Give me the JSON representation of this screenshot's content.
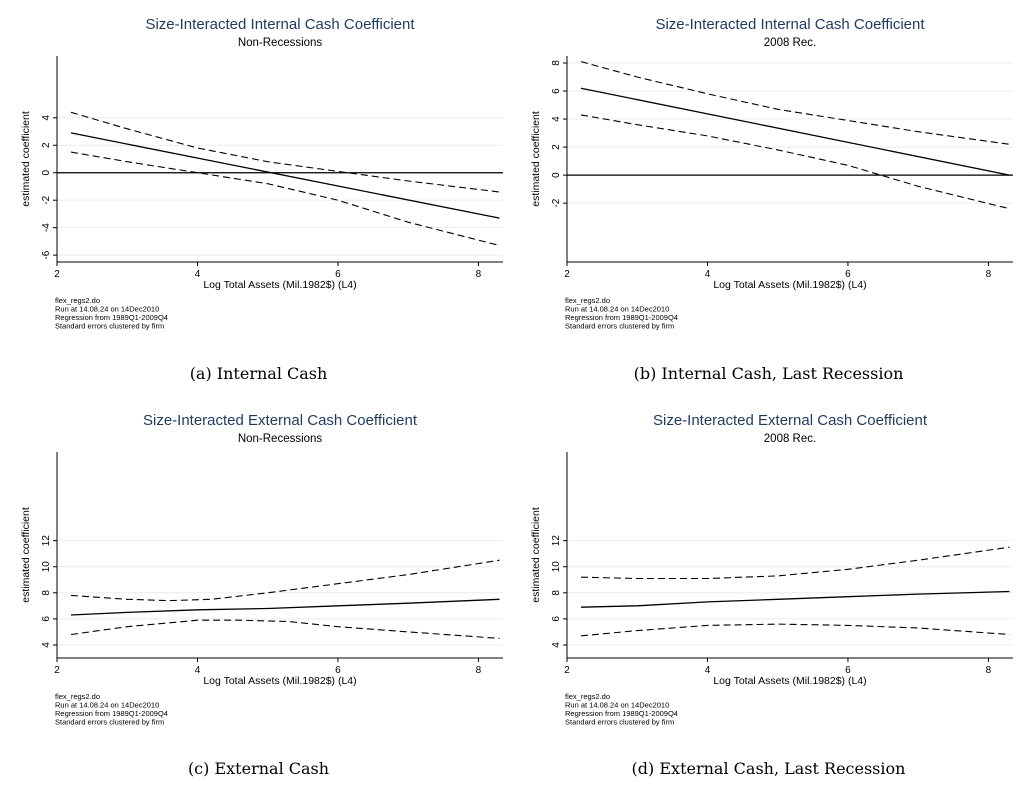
{
  "captions": [
    "(a) Internal Cash",
    "(b) Internal Cash, Last Recession",
    "(c) External Cash",
    "(d) External Cash, Last Recession"
  ],
  "chart_data": [
    {
      "type": "line",
      "title": "Size-Interacted Internal Cash Coefficient",
      "subtitle": "Non-Recessions",
      "xlabel": "Log Total Assets (Mil.1982$) (L4)",
      "ylabel": "estimated coefficient",
      "xlim": [
        2,
        8.35
      ],
      "ylim": [
        -6.5,
        8.5
      ],
      "xticks": [
        2,
        4,
        6,
        8
      ],
      "yticks": [
        -6,
        -4,
        -2,
        0,
        2,
        4
      ],
      "zero_line": true,
      "notes": [
        "flex_regs2.do",
        "Run at 14.08.24 on 14Dec2010",
        "Regression from 1989Q1-2009Q4",
        "Standard errors clustered by firm"
      ],
      "series": [
        {
          "style": "solid",
          "x": [
            2.2,
            8.3
          ],
          "y": [
            2.9,
            -3.3
          ]
        },
        {
          "style": "dashed",
          "x": [
            2.2,
            3.0,
            4.0,
            5.0,
            6.0,
            7.0,
            8.3
          ],
          "y": [
            4.4,
            3.2,
            1.8,
            0.8,
            0.1,
            -0.6,
            -1.4
          ]
        },
        {
          "style": "dashed",
          "x": [
            2.2,
            3.0,
            4.0,
            5.0,
            6.0,
            7.0,
            8.3
          ],
          "y": [
            1.5,
            0.8,
            0.0,
            -0.8,
            -2.0,
            -3.6,
            -5.3
          ]
        }
      ]
    },
    {
      "type": "line",
      "title": "Size-Interacted Internal Cash Coefficient",
      "subtitle": "2008 Rec.",
      "xlabel": "Log Total Assets (Mil.1982$) (L4)",
      "ylabel": "estimated coefficient",
      "xlim": [
        2,
        8.35
      ],
      "ylim": [
        -6.2,
        8.5
      ],
      "xticks": [
        2,
        4,
        6,
        8
      ],
      "yticks": [
        -2,
        0,
        2,
        4,
        6,
        8
      ],
      "zero_line": true,
      "notes": [
        "flex_regs2.do",
        "Run at 14.08.24 on 14Dec2010",
        "Regression from 1989Q1-2009Q4",
        "Standard errors clustered by firm"
      ],
      "series": [
        {
          "style": "solid",
          "x": [
            2.2,
            8.3
          ],
          "y": [
            6.2,
            0.0
          ]
        },
        {
          "style": "dashed",
          "x": [
            2.2,
            3.0,
            4.0,
            5.0,
            6.0,
            7.0,
            8.3
          ],
          "y": [
            8.1,
            7.0,
            5.8,
            4.7,
            3.9,
            3.1,
            2.2
          ]
        },
        {
          "style": "dashed",
          "x": [
            2.2,
            3.0,
            4.0,
            5.0,
            6.0,
            7.0,
            8.3
          ],
          "y": [
            4.3,
            3.6,
            2.8,
            1.8,
            0.7,
            -0.8,
            -2.4
          ]
        }
      ]
    },
    {
      "type": "line",
      "title": "Size-Interacted External Cash Coefficient",
      "subtitle": "Non-Recessions",
      "xlabel": "Log Total Assets (Mil.1982$) (L4)",
      "ylabel": "estimated coefficient",
      "xlim": [
        2,
        8.35
      ],
      "ylim": [
        3.0,
        18.8
      ],
      "xticks": [
        2,
        4,
        6,
        8
      ],
      "yticks": [
        4,
        6,
        8,
        10,
        12
      ],
      "zero_line": false,
      "notes": [
        "flex_regs2.do",
        "Run at 14.08.24 on 14Dec2010",
        "Regression from 1989Q1-2009Q4",
        "Standard errors clustered by firm"
      ],
      "series": [
        {
          "style": "solid",
          "x": [
            2.2,
            3.0,
            4.0,
            5.0,
            6.0,
            7.0,
            8.3
          ],
          "y": [
            6.3,
            6.5,
            6.7,
            6.8,
            7.0,
            7.2,
            7.5
          ]
        },
        {
          "style": "dashed",
          "x": [
            2.2,
            3.0,
            3.6,
            4.2,
            5.0,
            6.0,
            7.0,
            8.3
          ],
          "y": [
            7.8,
            7.5,
            7.4,
            7.5,
            8.0,
            8.7,
            9.4,
            10.5
          ]
        },
        {
          "style": "dashed",
          "x": [
            2.2,
            3.0,
            4.0,
            4.6,
            5.3,
            6.0,
            7.0,
            8.3
          ],
          "y": [
            4.8,
            5.4,
            5.9,
            5.9,
            5.8,
            5.4,
            5.0,
            4.5
          ]
        }
      ]
    },
    {
      "type": "line",
      "title": "Size-Interacted External Cash Coefficient",
      "subtitle": "2008 Rec.",
      "xlabel": "Log Total Assets (Mil.1982$) (L4)",
      "ylabel": "estimated coefficient",
      "xlim": [
        2,
        8.35
      ],
      "ylim": [
        3.0,
        18.8
      ],
      "xticks": [
        2,
        4,
        6,
        8
      ],
      "yticks": [
        4,
        6,
        8,
        10,
        12
      ],
      "zero_line": false,
      "notes": [
        "flex_regs2.do",
        "Run at 14.08.24 on 14Dec2010",
        "Regression from 1989Q1-2009Q4",
        "Standard errors clustered by firm"
      ],
      "series": [
        {
          "style": "solid",
          "x": [
            2.2,
            3.0,
            4.0,
            5.0,
            6.0,
            7.0,
            8.3
          ],
          "y": [
            6.9,
            7.0,
            7.3,
            7.5,
            7.7,
            7.9,
            8.1
          ]
        },
        {
          "style": "dashed",
          "x": [
            2.2,
            3.0,
            4.0,
            5.0,
            6.0,
            7.0,
            8.3
          ],
          "y": [
            9.2,
            9.1,
            9.1,
            9.3,
            9.8,
            10.5,
            11.5
          ]
        },
        {
          "style": "dashed",
          "x": [
            2.2,
            3.0,
            4.0,
            5.0,
            6.0,
            7.0,
            8.3
          ],
          "y": [
            4.7,
            5.1,
            5.5,
            5.6,
            5.5,
            5.3,
            4.8
          ]
        }
      ]
    }
  ]
}
